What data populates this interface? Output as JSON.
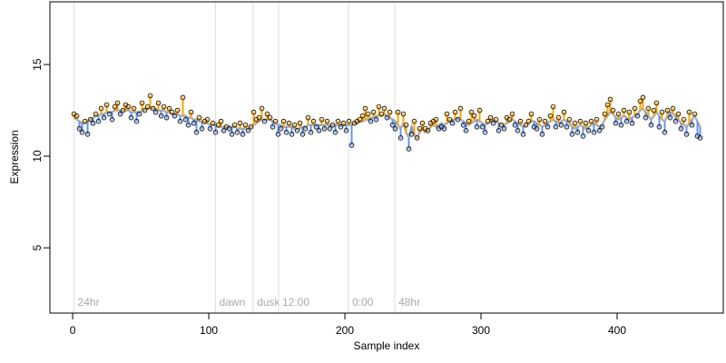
{
  "chart_data": {
    "type": "scatter-fit",
    "x_label": "Sample index",
    "y_label": "Expression",
    "xlim": [
      -16.7,
      478
    ],
    "ylim": [
      1.44,
      18.42
    ],
    "xticks": [
      0,
      100,
      200,
      300,
      400
    ],
    "yticks": [
      5,
      10,
      15
    ],
    "above_color": "#ffa500",
    "below_color": "#6495ed",
    "fit_color": "#b0b0b0",
    "annotation_color": "#dddddd",
    "annotations": [
      {
        "x": 1,
        "label": "24hr"
      },
      {
        "x": 105,
        "label": "dawn"
      },
      {
        "x": 132.7,
        "label": "dusk"
      },
      {
        "x": 151.3,
        "label": "12:00"
      },
      {
        "x": 202.7,
        "label": "0:00"
      },
      {
        "x": 236.7,
        "label": "48hr"
      }
    ],
    "x": [
      1,
      3,
      5,
      7,
      9,
      11,
      13,
      15,
      17,
      19,
      21,
      23,
      25,
      27,
      29,
      31,
      33,
      35,
      37,
      39,
      41,
      43,
      45,
      47,
      49,
      51,
      53,
      55,
      57,
      59,
      61,
      63,
      65,
      67,
      69,
      71,
      73,
      75,
      77,
      79,
      81,
      83,
      85,
      87,
      89,
      91,
      93,
      95,
      97,
      99,
      101,
      103,
      105,
      107,
      109,
      111,
      113,
      115,
      117,
      119,
      121,
      123,
      125,
      127,
      129,
      131,
      133,
      135,
      137,
      139,
      141,
      143,
      145,
      147,
      149,
      151,
      153,
      155,
      157,
      159,
      161,
      163,
      165,
      167,
      169,
      171,
      173,
      175,
      177,
      179,
      181,
      183,
      185,
      187,
      189,
      191,
      193,
      195,
      197,
      199,
      201,
      203,
      205,
      207,
      209,
      211,
      213,
      215,
      217,
      219,
      221,
      223,
      225,
      227,
      229,
      231,
      233,
      235,
      237,
      239,
      241,
      243,
      245,
      247,
      249,
      251,
      253,
      255,
      257,
      259,
      261,
      263,
      265,
      267,
      269,
      271,
      273,
      275,
      277,
      279,
      281,
      283,
      285,
      287,
      289,
      291,
      293,
      295,
      297,
      299,
      301,
      303,
      305,
      307,
      309,
      311,
      313,
      315,
      317,
      319,
      321,
      323,
      325,
      327,
      329,
      331,
      333,
      335,
      337,
      339,
      341,
      343,
      345,
      347,
      349,
      351,
      353,
      355,
      357,
      359,
      361,
      363,
      365,
      367,
      369,
      371,
      373,
      375,
      377,
      379,
      381,
      383,
      385,
      387,
      389,
      391,
      393,
      395,
      397,
      399,
      401,
      403,
      405,
      407,
      409,
      411,
      413,
      415,
      417,
      419,
      421,
      423,
      425,
      427,
      429,
      431,
      433,
      435,
      437,
      439,
      441,
      443,
      445,
      447,
      449,
      451,
      453,
      455,
      457,
      459,
      461
    ],
    "values": [
      12.3,
      12.2,
      11.5,
      11.3,
      11.9,
      11.2,
      12.0,
      11.8,
      12.3,
      11.9,
      12.6,
      12.1,
      12.8,
      12.3,
      12.0,
      12.7,
      12.9,
      12.3,
      12.5,
      12.8,
      12.7,
      12.1,
      12.6,
      11.9,
      12.3,
      12.9,
      12.5,
      12.7,
      13.3,
      12.6,
      12.4,
      12.9,
      12.2,
      12.7,
      12.1,
      12.6,
      12.4,
      12.2,
      12.5,
      11.9,
      13.2,
      12.0,
      11.7,
      12.4,
      11.8,
      11.3,
      12.1,
      11.5,
      11.9,
      12.0,
      11.5,
      11.8,
      11.3,
      11.7,
      11.9,
      11.4,
      11.6,
      11.5,
      11.2,
      11.7,
      11.3,
      11.8,
      11.2,
      11.7,
      11.4,
      11.6,
      12.4,
      12.0,
      12.1,
      12.6,
      11.9,
      12.3,
      12.1,
      11.6,
      11.9,
      11.2,
      11.5,
      11.9,
      11.3,
      11.8,
      11.2,
      11.7,
      11.4,
      11.8,
      11.2,
      11.5,
      12.1,
      11.3,
      11.9,
      11.6,
      11.4,
      12.0,
      11.5,
      11.9,
      11.5,
      11.7,
      11.3,
      11.9,
      11.6,
      11.8,
      11.4,
      11.9,
      10.6,
      11.8,
      11.9,
      12.0,
      12.2,
      12.6,
      12.3,
      11.9,
      12.4,
      12.0,
      12.7,
      12.3,
      12.6,
      12.1,
      12.4,
      11.7,
      11.5,
      12.4,
      11.0,
      12.3,
      11.7,
      10.4,
      11.2,
      11.9,
      11.0,
      11.5,
      11.8,
      11.5,
      11.4,
      11.8,
      11.9,
      12.0,
      11.5,
      11.6,
      11.5,
      12.3,
      12.0,
      11.8,
      12.4,
      12.0,
      12.6,
      11.7,
      11.4,
      11.9,
      12.4,
      12.2,
      11.6,
      12.5,
      11.6,
      11.3,
      11.9,
      12.1,
      11.8,
      12.0,
      11.4,
      11.7,
      11.5,
      12.1,
      12.0,
      12.3,
      11.7,
      11.4,
      11.9,
      11.2,
      11.7,
      11.9,
      12.3,
      11.6,
      11.5,
      12.0,
      11.2,
      11.9,
      11.6,
      12.2,
      12.7,
      11.6,
      12.1,
      11.7,
      12.4,
      11.6,
      12.0,
      11.2,
      11.8,
      11.3,
      11.9,
      11.1,
      11.8,
      11.4,
      11.9,
      11.3,
      12.0,
      11.4,
      11.6,
      12.3,
      12.8,
      13.1,
      12.5,
      11.8,
      12.3,
      11.7,
      12.5,
      11.9,
      12.4,
      11.8,
      12.6,
      12.2,
      13.0,
      13.2,
      12.1,
      12.6,
      11.7,
      12.5,
      12.9,
      11.6,
      12.4,
      11.3,
      12.5,
      12.1,
      12.6,
      11.9,
      12.3,
      11.5,
      12.0,
      11.2,
      12.4,
      11.7,
      12.3,
      11.1,
      11.0
    ],
    "fit": [
      12.1,
      12.0,
      11.9,
      11.8,
      11.8,
      11.9,
      12.0,
      12.1,
      12.2,
      12.2,
      12.3,
      12.3,
      12.4,
      12.4,
      12.4,
      12.5,
      12.5,
      12.5,
      12.5,
      12.5,
      12.5,
      12.4,
      12.4,
      12.4,
      12.4,
      12.5,
      12.5,
      12.6,
      12.6,
      12.6,
      12.6,
      12.5,
      12.5,
      12.5,
      12.4,
      12.4,
      12.3,
      12.3,
      12.3,
      12.2,
      12.2,
      12.2,
      12.1,
      12.1,
      12.0,
      12.0,
      11.9,
      11.9,
      11.8,
      11.8,
      11.7,
      11.7,
      11.7,
      11.6,
      11.6,
      11.6,
      11.6,
      11.6,
      11.6,
      11.6,
      11.5,
      11.5,
      11.5,
      11.5,
      11.5,
      11.6,
      11.7,
      11.8,
      11.9,
      12.0,
      12.0,
      12.0,
      12.0,
      11.9,
      11.8,
      11.7,
      11.7,
      11.6,
      11.6,
      11.6,
      11.6,
      11.5,
      11.5,
      11.5,
      11.6,
      11.6,
      11.7,
      11.7,
      11.7,
      11.7,
      11.7,
      11.7,
      11.7,
      11.7,
      11.7,
      11.7,
      11.7,
      11.7,
      11.7,
      11.7,
      11.7,
      11.7,
      11.7,
      11.8,
      11.8,
      11.9,
      11.9,
      12.0,
      12.0,
      12.1,
      12.1,
      12.2,
      12.2,
      12.2,
      12.3,
      12.2,
      12.1,
      12.0,
      11.9,
      11.7,
      11.5,
      11.8,
      11.3,
      11.0,
      11.6,
      11.2,
      11.0,
      11.3,
      11.5,
      11.3,
      11.4,
      11.6,
      11.7,
      11.6,
      11.7,
      11.8,
      11.7,
      11.8,
      11.9,
      12.0,
      12.0,
      12.1,
      12.0,
      11.9,
      11.8,
      11.7,
      11.8,
      11.9,
      12.0,
      11.9,
      11.8,
      11.7,
      11.8,
      11.9,
      12.0,
      11.9,
      11.8,
      11.7,
      11.7,
      11.8,
      11.9,
      12.0,
      11.9,
      11.8,
      11.7,
      11.6,
      11.7,
      11.8,
      11.9,
      11.9,
      11.8,
      11.7,
      11.6,
      11.7,
      11.8,
      11.9,
      12.0,
      11.9,
      11.8,
      11.9,
      12.0,
      11.9,
      11.8,
      11.6,
      11.5,
      11.6,
      11.7,
      11.6,
      11.5,
      11.6,
      11.7,
      11.8,
      11.7,
      11.6,
      11.7,
      12.0,
      12.2,
      12.4,
      12.3,
      12.1,
      12.0,
      12.1,
      12.2,
      12.1,
      12.0,
      12.1,
      12.2,
      12.3,
      12.5,
      12.6,
      12.4,
      12.2,
      12.0,
      12.2,
      12.4,
      12.2,
      12.0,
      11.9,
      12.2,
      12.4,
      12.3,
      12.2,
      12.0,
      11.8,
      11.7,
      11.6,
      11.8,
      12.0,
      12.2,
      11.9,
      11.6
    ]
  }
}
